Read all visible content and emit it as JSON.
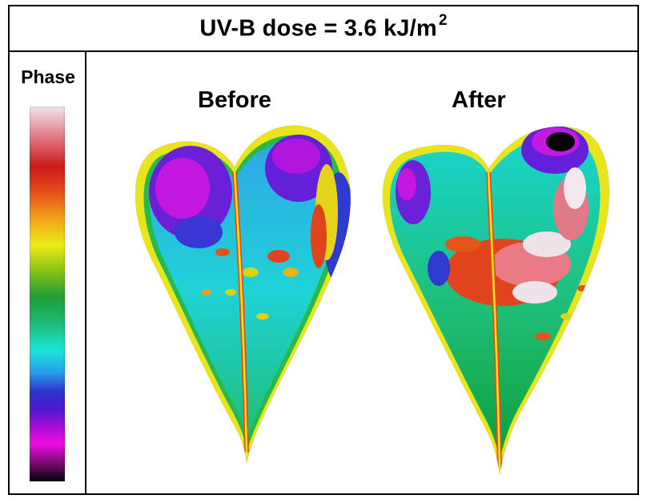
{
  "title": {
    "text": "UV-B dose = 3.6 kJ/m",
    "superscript": "2"
  },
  "legend": {
    "label": "Phase",
    "colormap": [
      "#f2e6ec",
      "#e27a86",
      "#cc1a1a",
      "#e2461a",
      "#f3a317",
      "#ecec17",
      "#86c216",
      "#1d9e3a",
      "#1ebc78",
      "#18e7d7",
      "#2a9bea",
      "#2a34cc",
      "#5018d0",
      "#b10bd9",
      "#ee0ee2",
      "#7a0a73",
      "#050305"
    ]
  },
  "panels": [
    {
      "label": "Before"
    },
    {
      "label": "After"
    }
  ]
}
